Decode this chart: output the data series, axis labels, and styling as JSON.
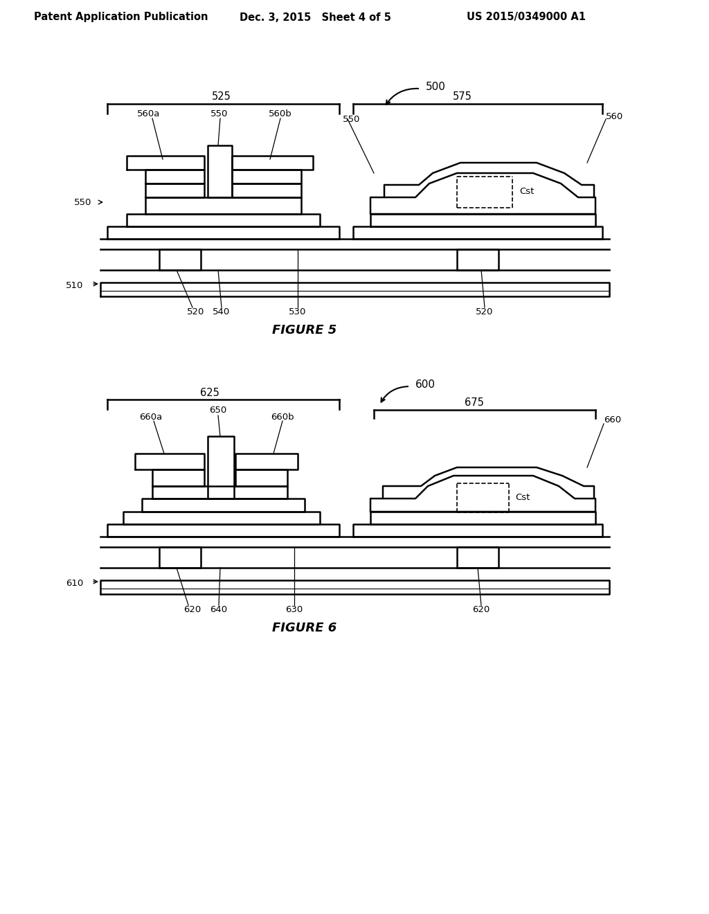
{
  "header_left": "Patent Application Publication",
  "header_mid": "Dec. 3, 2015   Sheet 4 of 5",
  "header_right": "US 2015/0349000 A1",
  "fig5_label": "FIGURE 5",
  "fig6_label": "FIGURE 6",
  "bg_color": "#ffffff",
  "line_color": "#000000"
}
